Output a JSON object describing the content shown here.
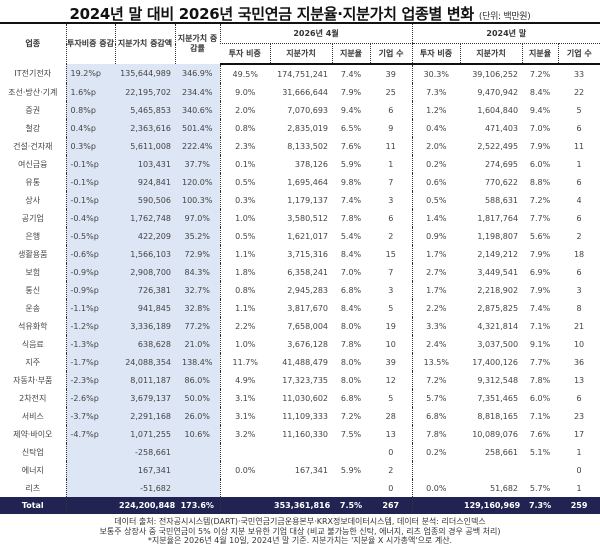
{
  "title": "2024년 말 대비 2026년 국민연금 지분율·지분가치 업종별 변화",
  "unit": "(단위: 백만원)",
  "headers": {
    "sector": "업종",
    "weight_change": "투자비중 증감",
    "value_change": "지분가치 증감액",
    "value_change_rate": "지분가치 증감률",
    "group_2026": "2026년 4월",
    "group_2024": "2024년 말",
    "sub": [
      "투자 비중",
      "지분가치",
      "지분율",
      "기업 수"
    ]
  },
  "rows": [
    [
      "IT전기전자",
      "19.2%p",
      "135,644,989",
      "346.9%",
      "49.5%",
      "174,751,241",
      "7.4%",
      "39",
      "30.3%",
      "39,106,252",
      "7.2%",
      "33"
    ],
    [
      "조선·방산·기계",
      "1.6%p",
      "22,195,702",
      "234.4%",
      "9.0%",
      "31,666,644",
      "7.9%",
      "25",
      "7.3%",
      "9,470,942",
      "8.4%",
      "22"
    ],
    [
      "증권",
      "0.8%p",
      "5,465,853",
      "340.6%",
      "2.0%",
      "7,070,693",
      "9.4%",
      "6",
      "1.2%",
      "1,604,840",
      "9.4%",
      "5"
    ],
    [
      "철강",
      "0.4%p",
      "2,363,616",
      "501.4%",
      "0.8%",
      "2,835,019",
      "6.5%",
      "9",
      "0.4%",
      "471,403",
      "7.0%",
      "6"
    ],
    [
      "건설·건자재",
      "0.3%p",
      "5,611,008",
      "222.4%",
      "2.3%",
      "8,133,502",
      "7.6%",
      "11",
      "2.0%",
      "2,522,495",
      "7.9%",
      "11"
    ],
    [
      "여신금융",
      "-0.1%p",
      "103,431",
      "37.7%",
      "0.1%",
      "378,126",
      "5.9%",
      "1",
      "0.2%",
      "274,695",
      "6.0%",
      "1"
    ],
    [
      "유통",
      "-0.1%p",
      "924,841",
      "120.0%",
      "0.5%",
      "1,695,464",
      "9.8%",
      "7",
      "0.6%",
      "770,622",
      "8.8%",
      "6"
    ],
    [
      "상사",
      "-0.1%p",
      "590,506",
      "100.3%",
      "0.3%",
      "1,179,137",
      "7.4%",
      "3",
      "0.5%",
      "588,631",
      "7.2%",
      "4"
    ],
    [
      "공기업",
      "-0.4%p",
      "1,762,748",
      "97.0%",
      "1.0%",
      "3,580,512",
      "7.8%",
      "6",
      "1.4%",
      "1,817,764",
      "7.7%",
      "6"
    ],
    [
      "은행",
      "-0.5%p",
      "422,209",
      "35.2%",
      "0.5%",
      "1,621,017",
      "5.4%",
      "2",
      "0.9%",
      "1,198,807",
      "5.6%",
      "2"
    ],
    [
      "생활용품",
      "-0.6%p",
      "1,566,103",
      "72.9%",
      "1.1%",
      "3,715,316",
      "8.4%",
      "15",
      "1.7%",
      "2,149,212",
      "7.9%",
      "18"
    ],
    [
      "보험",
      "-0.9%p",
      "2,908,700",
      "84.3%",
      "1.8%",
      "6,358,241",
      "7.0%",
      "7",
      "2.7%",
      "3,449,541",
      "6.9%",
      "6"
    ],
    [
      "통신",
      "-0.9%p",
      "726,381",
      "32.7%",
      "0.8%",
      "2,945,283",
      "6.8%",
      "3",
      "1.7%",
      "2,218,902",
      "7.9%",
      "3"
    ],
    [
      "운송",
      "-1.1%p",
      "941,845",
      "32.8%",
      "1.1%",
      "3,817,670",
      "8.4%",
      "5",
      "2.2%",
      "2,875,825",
      "7.4%",
      "8"
    ],
    [
      "석유화학",
      "-1.2%p",
      "3,336,189",
      "77.2%",
      "2.2%",
      "7,658,004",
      "8.0%",
      "19",
      "3.3%",
      "4,321,814",
      "7.1%",
      "21"
    ],
    [
      "식음료",
      "-1.3%p",
      "638,628",
      "21.0%",
      "1.0%",
      "3,676,128",
      "7.8%",
      "10",
      "2.4%",
      "3,037,500",
      "9.1%",
      "10"
    ],
    [
      "지주",
      "-1.7%p",
      "24,088,354",
      "138.4%",
      "11.7%",
      "41,488,479",
      "8.0%",
      "39",
      "13.5%",
      "17,400,126",
      "7.7%",
      "36"
    ],
    [
      "자동차·부품",
      "-2.3%p",
      "8,011,187",
      "86.0%",
      "4.9%",
      "17,323,735",
      "8.0%",
      "12",
      "7.2%",
      "9,312,548",
      "7.8%",
      "13"
    ],
    [
      "2차전지",
      "-2.6%p",
      "3,679,137",
      "50.0%",
      "3.1%",
      "11,030,602",
      "6.8%",
      "5",
      "5.7%",
      "7,351,465",
      "6.0%",
      "6"
    ],
    [
      "서비스",
      "-3.7%p",
      "2,291,168",
      "26.0%",
      "3.1%",
      "11,109,333",
      "7.2%",
      "28",
      "6.8%",
      "8,818,165",
      "7.1%",
      "23"
    ],
    [
      "제약·바이오",
      "-4.7%p",
      "1,071,255",
      "10.6%",
      "3.2%",
      "11,160,330",
      "7.5%",
      "13",
      "7.8%",
      "10,089,076",
      "7.6%",
      "17"
    ],
    [
      "신탁업",
      "",
      "-258,661",
      "",
      "",
      "",
      "",
      "0",
      "0.2%",
      "258,661",
      "5.1%",
      "1"
    ],
    [
      "에너지",
      "",
      "167,341",
      "",
      "0.0%",
      "167,341",
      "5.9%",
      "2",
      "",
      "",
      "",
      "0"
    ],
    [
      "리츠",
      "",
      "-51,682",
      "",
      "",
      "",
      "",
      "0",
      "0.0%",
      "51,682",
      "5.7%",
      "1"
    ]
  ],
  "total": [
    "Total",
    "",
    "224,200,848",
    "173.6%",
    "",
    "353,361,816",
    "7.5%",
    "267",
    "",
    "129,160,969",
    "7.3%",
    "259"
  ],
  "footer": [
    "데이터 출처: 전자공시시스템(DART)·국민연금기금운용본부·KRX정보데이터시스템, 데이터 분석: 리더스인덱스",
    "보통주 상장사 중 국민연금이 5% 이상 지분 보유한 기업 대상 (비교 불가능한 신탁, 에너지, 리츠 업종의 경우 공백 처리)",
    "*지분율은 2026년 4월 10일, 2024년 말 기준. 지분가치는 '지분율 X 시가총액'으로 계산."
  ]
}
